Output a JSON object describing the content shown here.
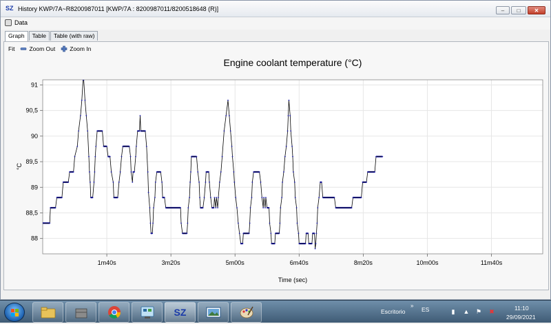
{
  "window": {
    "app_logo": "SZ",
    "title": "History KWP/7A~R8200987011 [KWP/7A : 8200987011/8200518648 (R)]"
  },
  "menu": {
    "data_label": "Data"
  },
  "tabs": [
    {
      "label": "Graph",
      "active": true
    },
    {
      "label": "Table",
      "active": false
    },
    {
      "label": "Table (with raw)",
      "active": false
    }
  ],
  "toolbar": {
    "fit_label": "Fit",
    "zoom_out_label": "Zoom Out",
    "zoom_in_label": "Zoom In"
  },
  "chart_data": {
    "type": "line",
    "title": "Engine coolant temperature (°C)",
    "xlabel": "Time (sec)",
    "ylabel": "°C",
    "xlim": [
      0,
      780
    ],
    "ylim": [
      87.7,
      91.1
    ],
    "x_ticks": [
      {
        "value": 100,
        "label": "1m40s"
      },
      {
        "value": 200,
        "label": "3m20s"
      },
      {
        "value": 300,
        "label": "5m00s"
      },
      {
        "value": 400,
        "label": "6m40s"
      },
      {
        "value": 500,
        "label": "8m20s"
      },
      {
        "value": 600,
        "label": "10m00s"
      },
      {
        "value": 700,
        "label": "11m40s"
      }
    ],
    "y_ticks": [
      {
        "value": 88,
        "label": "88"
      },
      {
        "value": 88.5,
        "label": "88,5"
      },
      {
        "value": 89,
        "label": "89"
      },
      {
        "value": 89.5,
        "label": "89,5"
      },
      {
        "value": 90,
        "label": "90"
      },
      {
        "value": 90.5,
        "label": "90,5"
      },
      {
        "value": 91,
        "label": "91"
      }
    ],
    "grid": true,
    "line_color": "#000000",
    "marker_color": "#1a1aa6",
    "series": [
      {
        "points": [
          [
            0,
            88.3
          ],
          [
            11,
            88.3
          ],
          [
            12,
            88.6
          ],
          [
            20,
            88.6
          ],
          [
            22,
            88.8
          ],
          [
            30,
            88.8
          ],
          [
            32,
            89.1
          ],
          [
            40,
            89.1
          ],
          [
            42,
            89.3
          ],
          [
            48,
            89.3
          ],
          [
            50,
            89.6
          ],
          [
            54,
            89.8
          ],
          [
            56,
            90.1
          ],
          [
            59,
            90.4
          ],
          [
            61,
            90.7
          ],
          [
            63,
            91.1
          ],
          [
            64,
            91.1
          ],
          [
            66,
            90.7
          ],
          [
            68,
            90.4
          ],
          [
            70,
            90.1
          ],
          [
            72,
            89.6
          ],
          [
            73,
            89.3
          ],
          [
            74,
            89.1
          ],
          [
            75,
            88.8
          ],
          [
            78,
            88.8
          ],
          [
            80,
            89.1
          ],
          [
            81,
            89.3
          ],
          [
            82,
            89.6
          ],
          [
            83,
            89.8
          ],
          [
            85,
            90.1
          ],
          [
            93,
            90.1
          ],
          [
            95,
            89.8
          ],
          [
            100,
            89.8
          ],
          [
            102,
            89.6
          ],
          [
            105,
            89.6
          ],
          [
            107,
            89.3
          ],
          [
            110,
            89.1
          ],
          [
            111,
            88.8
          ],
          [
            117,
            88.8
          ],
          [
            119,
            89.1
          ],
          [
            121,
            89.3
          ],
          [
            123,
            89.6
          ],
          [
            125,
            89.8
          ],
          [
            135,
            89.8
          ],
          [
            137,
            89.6
          ],
          [
            138,
            89.3
          ],
          [
            140,
            89.1
          ],
          [
            141,
            89.3
          ],
          [
            143,
            89.3
          ],
          [
            145,
            89.6
          ],
          [
            146,
            89.8
          ],
          [
            148,
            90.1
          ],
          [
            151,
            90.1
          ],
          [
            152,
            90.4
          ],
          [
            153,
            90.1
          ],
          [
            160,
            90.1
          ],
          [
            162,
            89.8
          ],
          [
            164,
            89.3
          ],
          [
            165,
            88.9
          ],
          [
            167,
            88.6
          ],
          [
            168,
            88.3
          ],
          [
            169,
            88.1
          ],
          [
            171,
            88.1
          ],
          [
            172,
            88.3
          ],
          [
            173,
            88.6
          ],
          [
            175,
            88.8
          ],
          [
            176,
            89.1
          ],
          [
            178,
            89.3
          ],
          [
            184,
            89.3
          ],
          [
            186,
            89.1
          ],
          [
            187,
            88.8
          ],
          [
            190,
            88.8
          ],
          [
            192,
            88.6
          ],
          [
            215,
            88.6
          ],
          [
            216,
            88.3
          ],
          [
            218,
            88.1
          ],
          [
            225,
            88.1
          ],
          [
            226,
            88.3
          ],
          [
            227,
            88.6
          ],
          [
            229,
            88.8
          ],
          [
            230,
            89.1
          ],
          [
            231,
            89.3
          ],
          [
            232,
            89.6
          ],
          [
            240,
            89.6
          ],
          [
            242,
            89.3
          ],
          [
            244,
            89.1
          ],
          [
            245,
            88.8
          ],
          [
            246,
            88.6
          ],
          [
            250,
            88.6
          ],
          [
            252,
            88.8
          ],
          [
            254,
            89.1
          ],
          [
            255,
            89.3
          ],
          [
            259,
            89.3
          ],
          [
            260,
            89.1
          ],
          [
            262,
            88.8
          ],
          [
            264,
            88.6
          ],
          [
            267,
            88.6
          ],
          [
            268,
            88.8
          ],
          [
            270,
            88.6
          ],
          [
            271,
            88.8
          ],
          [
            273,
            88.6
          ],
          [
            274,
            88.8
          ],
          [
            276,
            89.1
          ],
          [
            278,
            89.3
          ],
          [
            280,
            89.6
          ],
          [
            283,
            90.1
          ],
          [
            286,
            90.4
          ],
          [
            289,
            90.7
          ],
          [
            291,
            90.4
          ],
          [
            293,
            90.1
          ],
          [
            295,
            89.8
          ],
          [
            296,
            89.6
          ],
          [
            298,
            89.3
          ],
          [
            299,
            89.1
          ],
          [
            301,
            88.8
          ],
          [
            303,
            88.6
          ],
          [
            305,
            88.3
          ],
          [
            307,
            88.1
          ],
          [
            309,
            87.9
          ],
          [
            312,
            87.9
          ],
          [
            313,
            88.1
          ],
          [
            322,
            88.1
          ],
          [
            323,
            88.3
          ],
          [
            324,
            88.6
          ],
          [
            326,
            88.8
          ],
          [
            327,
            89.1
          ],
          [
            329,
            89.3
          ],
          [
            338,
            89.3
          ],
          [
            340,
            89.1
          ],
          [
            342,
            88.8
          ],
          [
            344,
            88.6
          ],
          [
            345,
            88.8
          ],
          [
            347,
            88.6
          ],
          [
            348,
            88.8
          ],
          [
            350,
            88.6
          ],
          [
            353,
            88.6
          ],
          [
            354,
            88.3
          ],
          [
            356,
            88.1
          ],
          [
            357,
            87.9
          ],
          [
            362,
            87.9
          ],
          [
            363,
            88.1
          ],
          [
            369,
            88.1
          ],
          [
            370,
            88.3
          ],
          [
            371,
            88.6
          ],
          [
            373,
            88.8
          ],
          [
            374,
            89.1
          ],
          [
            376,
            89.3
          ],
          [
            378,
            89.6
          ],
          [
            380,
            89.8
          ],
          [
            382,
            90.1
          ],
          [
            383,
            90.4
          ],
          [
            384,
            90.7
          ],
          [
            386,
            90.4
          ],
          [
            387,
            90.1
          ],
          [
            389,
            89.8
          ],
          [
            390,
            89.6
          ],
          [
            391,
            89.3
          ],
          [
            393,
            89.1
          ],
          [
            394,
            88.8
          ],
          [
            396,
            88.6
          ],
          [
            397,
            88.3
          ],
          [
            399,
            88.1
          ],
          [
            400,
            87.9
          ],
          [
            410,
            87.9
          ],
          [
            411,
            88.1
          ],
          [
            414,
            88.1
          ],
          [
            415,
            87.9
          ],
          [
            420,
            87.9
          ],
          [
            421,
            88.1
          ],
          [
            424,
            88.1
          ],
          [
            425,
            87.8
          ],
          [
            426,
            87.9
          ],
          [
            427,
            88.1
          ],
          [
            428,
            88.3
          ],
          [
            429,
            88.6
          ],
          [
            431,
            88.8
          ],
          [
            433,
            89.1
          ],
          [
            435,
            89.1
          ],
          [
            437,
            88.8
          ],
          [
            455,
            88.8
          ],
          [
            457,
            88.6
          ],
          [
            482,
            88.6
          ],
          [
            484,
            88.8
          ],
          [
            497,
            88.8
          ],
          [
            499,
            89.1
          ],
          [
            505,
            89.1
          ],
          [
            507,
            89.3
          ],
          [
            518,
            89.3
          ],
          [
            520,
            89.6
          ],
          [
            530,
            89.6
          ]
        ]
      }
    ]
  },
  "taskbar": {
    "apps": [
      {
        "name": "file-explorer"
      },
      {
        "name": "cardboard-box"
      },
      {
        "name": "chrome"
      },
      {
        "name": "control-panel"
      },
      {
        "name": "sz",
        "label": "SZ"
      },
      {
        "name": "image-viewer"
      },
      {
        "name": "paint"
      }
    ],
    "desktop_label": "Escritorio",
    "lang": "ES",
    "time": "11:10",
    "date": "29/09/2021"
  }
}
